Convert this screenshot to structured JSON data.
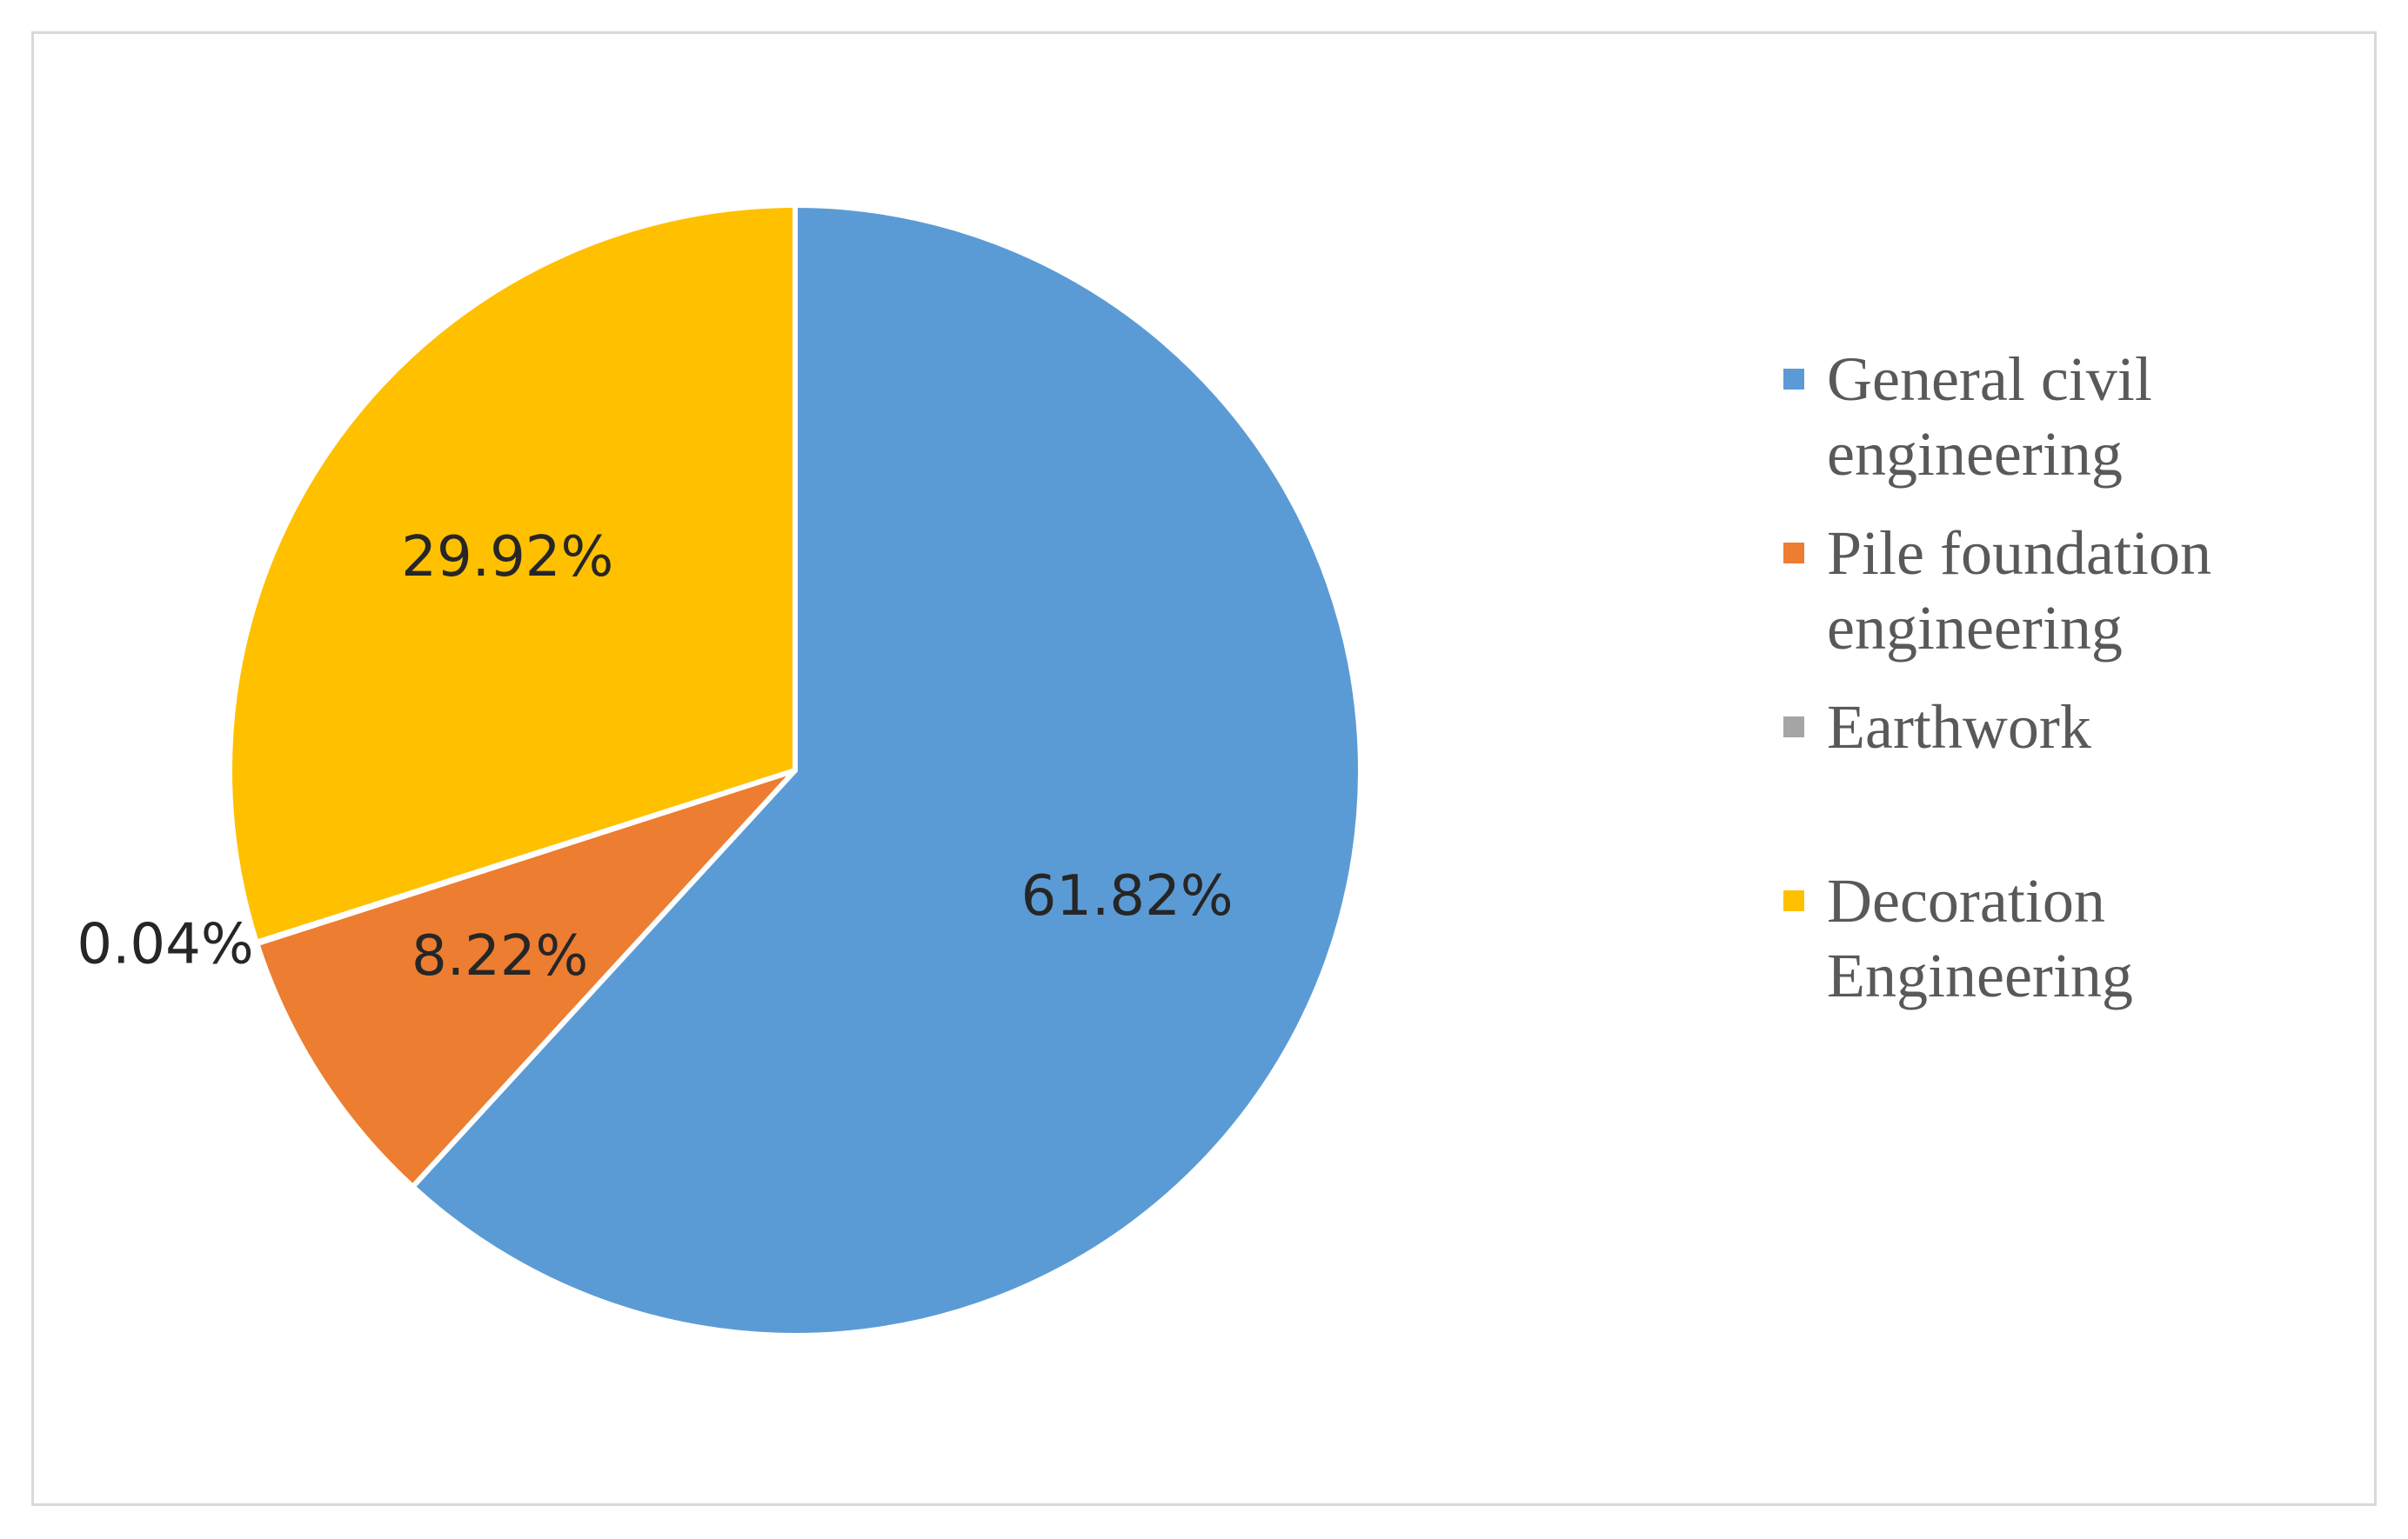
{
  "chart_data": {
    "type": "pie",
    "title": "",
    "start_angle_deg": 0,
    "direction": "clockwise",
    "categories": [
      "General civil engineering",
      "Pile foundation engineering",
      "Earthwork",
      "Decoration Engineering"
    ],
    "values": [
      61.82,
      8.22,
      0.04,
      29.92
    ],
    "value_labels": [
      "61.82%",
      "8.22%",
      "0.04%",
      "29.92%"
    ],
    "colors": [
      "#5b9bd5",
      "#ed7d31",
      "#a5a5a5",
      "#ffc000"
    ],
    "legend": {
      "placement": "right",
      "entries": [
        {
          "lines": [
            "General civil",
            "engineering"
          ],
          "color": "#5b9bd5"
        },
        {
          "lines": [
            "Pile foundation",
            "engineering"
          ],
          "color": "#ed7d31"
        },
        {
          "lines": [
            "Earthwork"
          ],
          "color": "#a5a5a5"
        },
        {
          "lines": [
            "Decoration",
            "Engineering"
          ],
          "color": "#ffc000"
        }
      ]
    }
  }
}
